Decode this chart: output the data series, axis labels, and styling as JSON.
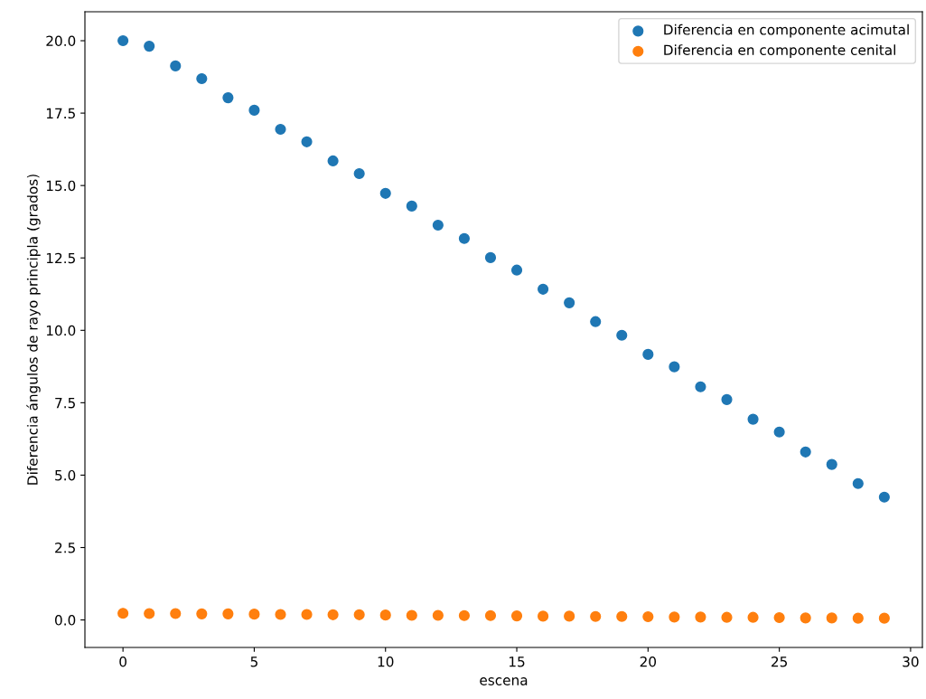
{
  "chart_data": {
    "type": "scatter",
    "xlabel": "escena",
    "ylabel": "Diferencia ángulos de rayo principla (grados)",
    "x": [
      0,
      1,
      2,
      3,
      4,
      5,
      6,
      7,
      8,
      9,
      10,
      11,
      12,
      13,
      14,
      15,
      16,
      17,
      18,
      19,
      20,
      21,
      22,
      23,
      24,
      25,
      26,
      27,
      28,
      29
    ],
    "series": [
      {
        "name": "Diferencia en componente acimutal",
        "color": "#1f77b4",
        "values": [
          20.0,
          19.81,
          19.13,
          18.69,
          18.03,
          17.6,
          16.94,
          16.51,
          15.85,
          15.41,
          14.73,
          14.29,
          13.63,
          13.17,
          12.51,
          12.08,
          11.42,
          10.95,
          10.3,
          9.83,
          9.17,
          8.74,
          8.05,
          7.61,
          6.93,
          6.49,
          5.8,
          5.37,
          4.71,
          4.24
        ]
      },
      {
        "name": "Diferencia en componente cenital",
        "color": "#ff7f0e",
        "values": [
          0.23,
          0.22,
          0.22,
          0.21,
          0.21,
          0.2,
          0.19,
          0.19,
          0.18,
          0.18,
          0.17,
          0.16,
          0.16,
          0.15,
          0.15,
          0.14,
          0.13,
          0.13,
          0.12,
          0.12,
          0.11,
          0.1,
          0.1,
          0.09,
          0.09,
          0.08,
          0.07,
          0.07,
          0.06,
          0.06
        ]
      }
    ],
    "xlim": [
      -1.45,
      30.45
    ],
    "ylim": [
      -0.95,
      21.0
    ],
    "xticks": [
      0,
      5,
      10,
      15,
      20,
      25,
      30
    ],
    "yticks": [
      {
        "value": 0,
        "label": "0.0"
      },
      {
        "value": 2.5,
        "label": "2.5"
      },
      {
        "value": 5,
        "label": "5.0"
      },
      {
        "value": 7.5,
        "label": "7.5"
      },
      {
        "value": 10,
        "label": "10.0"
      },
      {
        "value": 12.5,
        "label": "12.5"
      },
      {
        "value": 15,
        "label": "15.0"
      },
      {
        "value": 17.5,
        "label": "17.5"
      },
      {
        "value": 20,
        "label": "20.0"
      }
    ],
    "marker": "circle",
    "legend": "top right"
  }
}
